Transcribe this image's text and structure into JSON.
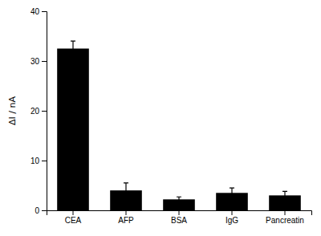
{
  "chart_data": {
    "type": "bar",
    "categories": [
      "CEA",
      "AFP",
      "BSA",
      "IgG",
      "Pancreatin"
    ],
    "values": [
      32.5,
      4.0,
      2.2,
      3.5,
      3.0
    ],
    "errors": [
      1.5,
      1.5,
      0.5,
      1.0,
      0.8
    ],
    "color": "#000000",
    "ylabel": "ΔI / nA",
    "ylim": [
      0,
      40
    ],
    "yticks": [
      0,
      10,
      20,
      30,
      40
    ],
    "grid": false
  }
}
